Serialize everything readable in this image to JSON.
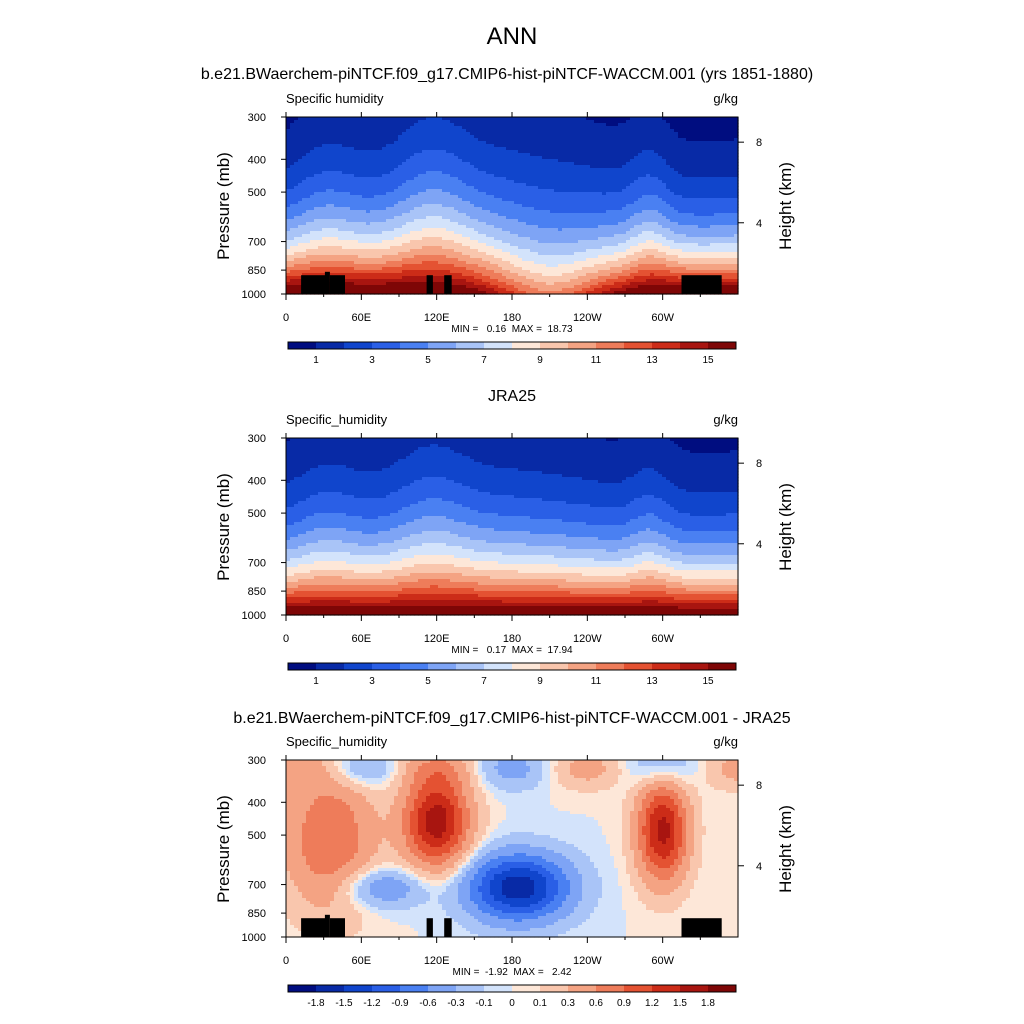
{
  "figure_title": "ANN",
  "chart_data": [
    {
      "type": "heatmap",
      "title": "b.e21.BWaerchem-piNTCF.f09_g17.CMIP6-hist-piNTCF-WACCM.001 (yrs 1851-1880)",
      "variable": "Specific humidity",
      "units": "g/kg",
      "ylabel": "Pressure (mb)",
      "ylabel_right": "Height (km)",
      "x_ticks": [
        "0",
        "60E",
        "120E",
        "180",
        "120W",
        "60W"
      ],
      "y_ticks": [
        "300",
        "400",
        "500",
        "700",
        "850",
        "1000"
      ],
      "y_ticks_right": [
        "8",
        "4"
      ],
      "stats": "MIN =   0.16  MAX =  18.73",
      "min": 0.16,
      "max": 18.73,
      "colorbar_labels": [
        "1",
        "3",
        "5",
        "7",
        "9",
        "11",
        "13",
        "15"
      ],
      "topography": true
    },
    {
      "type": "heatmap",
      "title": "JRA25",
      "variable": "Specific_humidity",
      "units": "g/kg",
      "ylabel": "Pressure (mb)",
      "ylabel_right": "Height (km)",
      "x_ticks": [
        "0",
        "60E",
        "120E",
        "180",
        "120W",
        "60W"
      ],
      "y_ticks": [
        "300",
        "400",
        "500",
        "700",
        "850",
        "1000"
      ],
      "y_ticks_right": [
        "8",
        "4"
      ],
      "stats": "MIN =   0.17  MAX =  17.94",
      "min": 0.17,
      "max": 17.94,
      "colorbar_labels": [
        "1",
        "3",
        "5",
        "7",
        "9",
        "11",
        "13",
        "15"
      ],
      "topography": false
    },
    {
      "type": "heatmap",
      "title": "b.e21.BWaerchem-piNTCF.f09_g17.CMIP6-hist-piNTCF-WACCM.001 - JRA25",
      "variable": "Specific_humidity",
      "units": "g/kg",
      "ylabel": "Pressure (mb)",
      "ylabel_right": "Height (km)",
      "x_ticks": [
        "0",
        "60E",
        "120E",
        "180",
        "120W",
        "60W"
      ],
      "y_ticks": [
        "300",
        "400",
        "500",
        "700",
        "850",
        "1000"
      ],
      "y_ticks_right": [
        "8",
        "4"
      ],
      "stats": "MIN =  -1.92  MAX =   2.42",
      "min": -1.92,
      "max": 2.42,
      "colorbar_labels": [
        "-1.8",
        "-1.5",
        "-1.2",
        "-0.9",
        "-0.6",
        "-0.3",
        "-0.1",
        "0",
        "0.1",
        "0.3",
        "0.6",
        "0.9",
        "1.2",
        "1.5",
        "1.8"
      ],
      "topography": true
    }
  ],
  "palettes": {
    "abs": [
      "#000d80",
      "#082aa6",
      "#1045cc",
      "#2a5fe6",
      "#4a80f2",
      "#7ea4f5",
      "#a9c4f7",
      "#d3e3fb",
      "#fde7d8",
      "#f9c6ad",
      "#f4a383",
      "#ee7c5a",
      "#e45232",
      "#cc2c18",
      "#a81510",
      "#7e0606"
    ],
    "diff": [
      "#000d80",
      "#082aa6",
      "#1045cc",
      "#2a5fe6",
      "#4a80f2",
      "#7ea4f5",
      "#a9c4f7",
      "#d3e3fb",
      "#fde7d8",
      "#f9c6ad",
      "#f4a383",
      "#ee7c5a",
      "#e45232",
      "#cc2c18",
      "#a81510",
      "#7e0606"
    ]
  }
}
